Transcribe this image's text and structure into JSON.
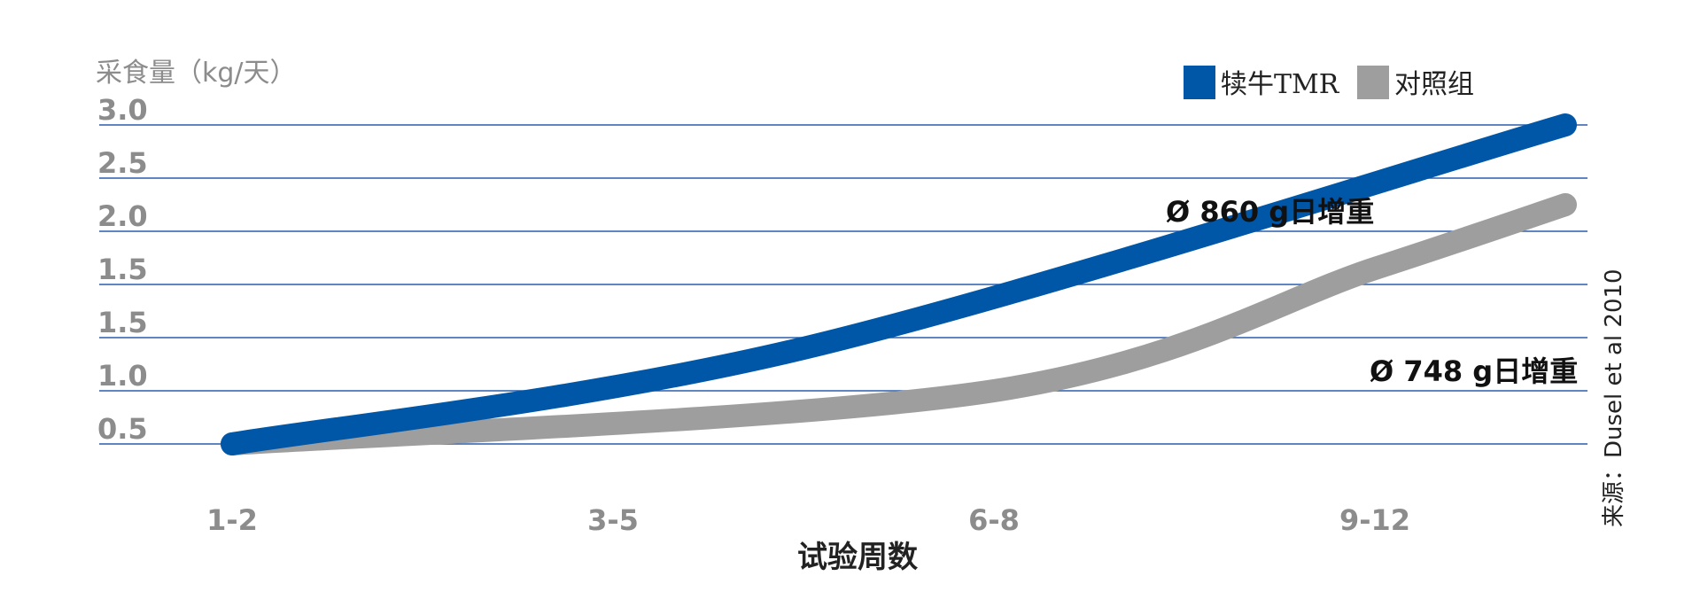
{
  "chart_data": {
    "type": "line",
    "ylabel": "采食量（kg/天）",
    "xlabel": "试验周数",
    "categories": [
      "1-2",
      "3-5",
      "6-8",
      "9-12"
    ],
    "y_ticks": [
      "3.0",
      "2.5",
      "2.0",
      "1.5",
      "1.5",
      "1.0",
      "0.5"
    ],
    "grid": true,
    "legend_position": "top-right",
    "series": [
      {
        "name": "犊牛TMR",
        "color": "#0057a8",
        "points": [
          [
            0,
            0.0
          ],
          [
            1.5,
            0.9
          ],
          [
            3.5,
            3.0
          ]
        ],
        "annotation": "Ø 860 g日增重"
      },
      {
        "name": "对照组",
        "color": "#9e9e9e",
        "points": [
          [
            0,
            0.0
          ],
          [
            2.0,
            0.5
          ],
          [
            3.0,
            1.65
          ],
          [
            3.5,
            2.25
          ]
        ],
        "annotation": "Ø 748 g日增重"
      }
    ],
    "source": "来源：Dusel et al 2010"
  }
}
